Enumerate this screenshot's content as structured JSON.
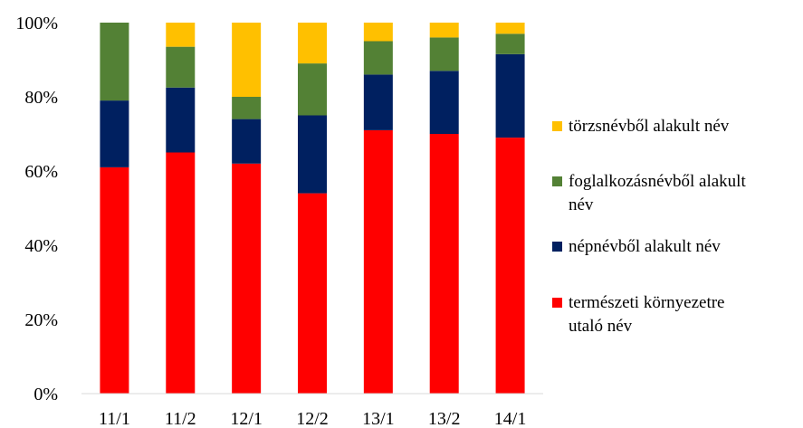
{
  "chart_data": {
    "type": "bar",
    "stacked": true,
    "percent": true,
    "title": "",
    "xlabel": "",
    "ylabel": "",
    "categories": [
      "11/1",
      "11/2",
      "12/1",
      "12/2",
      "13/1",
      "13/2",
      "14/1"
    ],
    "ylim": [
      0,
      100
    ],
    "yticks": [
      "0%",
      "20%",
      "40%",
      "60%",
      "80%",
      "100%"
    ],
    "grid": false,
    "legend_position": "right",
    "series": [
      {
        "name": "természeti környezetre utaló név",
        "color": "#ff0000",
        "values": [
          61,
          65,
          62,
          54,
          71,
          70,
          69
        ]
      },
      {
        "name": "népnévből alakult név",
        "color": "#002060",
        "values": [
          18,
          17.5,
          12,
          21,
          15,
          17,
          22.5
        ]
      },
      {
        "name": "foglalkozásnévből alakult név",
        "color": "#538135",
        "values": [
          21,
          11,
          6,
          14,
          9,
          9,
          5.5
        ]
      },
      {
        "name": "törzsnévből alakult név",
        "color": "#ffc000",
        "values": [
          0,
          6.5,
          20,
          11,
          5,
          4,
          3
        ]
      }
    ],
    "legend": [
      {
        "lines": [
          "törzsnévből alakult név"
        ],
        "color": "#ffc000"
      },
      {
        "lines": [
          "foglalkozásnévből alakult",
          "név"
        ],
        "color": "#538135"
      },
      {
        "lines": [
          "népnévből alakult név"
        ],
        "color": "#002060"
      },
      {
        "lines": [
          "természeti környezetre",
          "utaló név"
        ],
        "color": "#ff0000"
      }
    ]
  }
}
